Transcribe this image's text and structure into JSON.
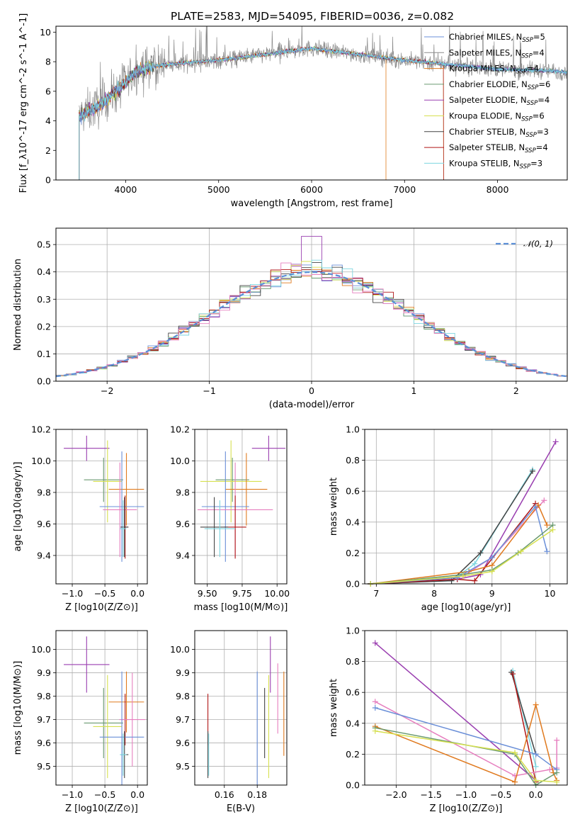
{
  "figure": {
    "title": "PLATE=2583, MJD=54095, FIBERID=0036, z=0.082"
  },
  "colors": {
    "chabrier_miles": "#6a8fd8",
    "salpeter_miles": "#8a8a8a",
    "kroupa_miles": "#e07a1f",
    "chabrier_elodie": "#6a9a70",
    "salpeter_elodie": "#9a3fb0",
    "kroupa_elodie": "#d6e050",
    "chabrier_stelib": "#444444",
    "salpeter_stelib": "#b01818",
    "kroupa_stelib": "#7dd6e0",
    "pink": "#e67fbf",
    "normal": "#5b8ed6"
  },
  "chart_data": [
    {
      "id": "spectrum",
      "type": "line",
      "title": "PLATE=2583, MJD=54095, FIBERID=0036, z=0.082",
      "xlabel": "wavelength [Angstrom, rest frame]",
      "ylabel": "Flux [f_λ10^-17 erg cm^-2 s^-1 A^-1]",
      "xlim": [
        3250,
        8750
      ],
      "ylim": [
        0,
        10.4
      ],
      "xticks": [
        4000,
        5000,
        6000,
        7000,
        8000
      ],
      "yticks": [
        0,
        2,
        4,
        6,
        8,
        10
      ],
      "grid": false,
      "legend_position": "right",
      "continuum": {
        "x": [
          3500,
          3700,
          3900,
          4000,
          4100,
          4300,
          4600,
          5000,
          5500,
          6000,
          6500,
          7000,
          7500,
          8000,
          8500,
          8750
        ],
        "y": [
          4.3,
          5.0,
          6.0,
          6.6,
          7.3,
          7.7,
          7.9,
          8.1,
          8.5,
          8.9,
          8.5,
          8.1,
          7.8,
          7.5,
          7.4,
          7.3
        ]
      },
      "legend": [
        {
          "label": "Chabrier MILES, N_SSP=5",
          "color_key": "chabrier_miles"
        },
        {
          "label": "Salpeter MILES, N_SSP=4",
          "color_key": "salpeter_miles"
        },
        {
          "label": "Kroupa MILES, N_SSP=4",
          "color_key": "kroupa_miles"
        },
        {
          "label": "Chabrier ELODIE, N_SSP=6",
          "color_key": "chabrier_elodie"
        },
        {
          "label": "Salpeter ELODIE, N_SSP=4",
          "color_key": "salpeter_elodie"
        },
        {
          "label": "Kroupa ELODIE, N_SSP=6",
          "color_key": "kroupa_elodie"
        },
        {
          "label": "Chabrier STELIB, N_SSP=3",
          "color_key": "chabrier_stelib"
        },
        {
          "label": "Salpeter STELIB, N_SSP=4",
          "color_key": "salpeter_stelib"
        },
        {
          "label": "Kroupa STELIB, N_SSP=3",
          "color_key": "kroupa_stelib"
        }
      ]
    },
    {
      "id": "residuals",
      "type": "line",
      "xlabel": "(data-model)/error",
      "ylabel": "Normed distribution",
      "xlim": [
        -2.5,
        2.5
      ],
      "ylim": [
        0,
        0.56
      ],
      "xticks": [
        -2,
        -1,
        0,
        1,
        2
      ],
      "yticks": [
        0.0,
        0.1,
        0.2,
        0.3,
        0.4,
        0.5
      ],
      "grid": true,
      "legend_position": "top-right",
      "legend": [
        {
          "label": "N(0,1)"
        }
      ],
      "histogram_bin_width": 0.1,
      "peak_bar": {
        "x": 0.0,
        "y": 0.53
      }
    },
    {
      "id": "age_vs_Z",
      "type": "scatter",
      "xlabel": "Z [log10(Z/Z⊙)]",
      "ylabel": "age [log10(age/yr)]",
      "xlim": [
        -1.25,
        0.15
      ],
      "ylim": [
        9.22,
        10.2
      ],
      "xticks": [
        -1.0,
        -0.5,
        0.0
      ],
      "yticks": [
        9.4,
        9.6,
        9.8,
        10.0,
        10.2
      ],
      "grid": true,
      "points": [
        {
          "color_key": "salpeter_elodie",
          "x": -0.78,
          "xerr": 0.35,
          "y": 10.08,
          "yerr": 0.08
        },
        {
          "color_key": "chabrier_elodie",
          "x": -0.52,
          "xerr": 0.3,
          "y": 9.88,
          "yerr": 0.14
        },
        {
          "color_key": "kroupa_elodie",
          "x": -0.46,
          "xerr": 0.22,
          "y": 9.87,
          "yerr": 0.26
        },
        {
          "color_key": "kroupa_miles",
          "x": -0.17,
          "xerr": 0.27,
          "y": 9.82,
          "yerr": 0.23
        },
        {
          "color_key": "chabrier_miles",
          "x": -0.24,
          "xerr": 0.34,
          "y": 9.71,
          "yerr": 0.35
        },
        {
          "color_key": "pink",
          "x": -0.27,
          "xerr": 0.26,
          "y": 9.69,
          "yerr": 0.3
        },
        {
          "color_key": "salpeter_stelib",
          "x": -0.19,
          "xerr": 0.05,
          "y": 9.58,
          "yerr": 0.2
        },
        {
          "color_key": "chabrier_stelib",
          "x": -0.2,
          "xerr": 0.06,
          "y": 9.58,
          "yerr": 0.19
        },
        {
          "color_key": "kroupa_stelib",
          "x": -0.22,
          "xerr": 0.05,
          "y": 9.57,
          "yerr": 0.18
        }
      ]
    },
    {
      "id": "age_vs_mass",
      "type": "scatter",
      "xlabel": "mass [log10(M/M⊙)]",
      "ylabel": "",
      "xlim": [
        9.41,
        10.07
      ],
      "ylim": [
        9.22,
        10.2
      ],
      "xticks": [
        9.5,
        9.75,
        10.0
      ],
      "yticks": [
        9.4,
        9.6,
        9.8,
        10.0,
        10.2
      ],
      "grid": true,
      "points": [
        {
          "color_key": "salpeter_elodie",
          "x": 9.94,
          "xerr": 0.12,
          "y": 10.08,
          "yerr": 0.08
        },
        {
          "color_key": "chabrier_elodie",
          "x": 9.68,
          "xerr": 0.12,
          "y": 9.88,
          "yerr": 0.14
        },
        {
          "color_key": "kroupa_elodie",
          "x": 9.67,
          "xerr": 0.22,
          "y": 9.87,
          "yerr": 0.26
        },
        {
          "color_key": "kroupa_miles",
          "x": 9.78,
          "xerr": 0.15,
          "y": 9.82,
          "yerr": 0.23
        },
        {
          "color_key": "chabrier_miles",
          "x": 9.63,
          "xerr": 0.17,
          "y": 9.71,
          "yerr": 0.35
        },
        {
          "color_key": "pink",
          "x": 9.7,
          "xerr": 0.27,
          "y": 9.69,
          "yerr": 0.3
        },
        {
          "color_key": "salpeter_stelib",
          "x": 9.7,
          "xerr": 0.08,
          "y": 9.58,
          "yerr": 0.2
        },
        {
          "color_key": "chabrier_stelib",
          "x": 9.55,
          "xerr": 0.1,
          "y": 9.58,
          "yerr": 0.19
        },
        {
          "color_key": "kroupa_stelib",
          "x": 9.59,
          "xerr": 0.11,
          "y": 9.57,
          "yerr": 0.18
        }
      ]
    },
    {
      "id": "mass_weight_vs_age",
      "type": "line",
      "xlabel": "age [log10(age/yr)]",
      "ylabel": "mass weight",
      "xlim": [
        6.8,
        10.3
      ],
      "ylim": [
        0,
        1.0
      ],
      "xticks": [
        7,
        8,
        9,
        10
      ],
      "yticks": [
        0.0,
        0.2,
        0.4,
        0.6,
        0.8,
        1.0
      ],
      "grid": true,
      "series": [
        {
          "color_key": "kroupa_stelib",
          "x": [
            6.9,
            8.3,
            8.7,
            9.7
          ],
          "y": [
            0.0,
            0.02,
            0.13,
            0.74
          ]
        },
        {
          "color_key": "chabrier_stelib",
          "x": [
            6.9,
            8.3,
            8.8,
            9.7
          ],
          "y": [
            0.0,
            0.02,
            0.2,
            0.73
          ]
        },
        {
          "color_key": "salpeter_elodie",
          "x": [
            6.9,
            8.4,
            8.8,
            10.1
          ],
          "y": [
            0.0,
            0.03,
            0.06,
            0.92
          ]
        },
        {
          "color_key": "salpeter_stelib",
          "x": [
            6.9,
            8.4,
            8.7,
            9.75
          ],
          "y": [
            0.0,
            0.03,
            0.02,
            0.52
          ]
        },
        {
          "color_key": "pink",
          "x": [
            6.9,
            8.5,
            9.0,
            9.9
          ],
          "y": [
            0.0,
            0.05,
            0.17,
            0.54
          ]
        },
        {
          "color_key": "kroupa_miles",
          "x": [
            6.9,
            8.6,
            9.0,
            9.8,
            9.95
          ],
          "y": [
            0.0,
            0.08,
            0.12,
            0.51,
            0.38
          ]
        },
        {
          "color_key": "chabrier_miles",
          "x": [
            6.9,
            8.4,
            9.0,
            9.75,
            9.95
          ],
          "y": [
            0.0,
            0.04,
            0.17,
            0.5,
            0.21
          ]
        },
        {
          "color_key": "chabrier_elodie",
          "x": [
            6.9,
            8.5,
            9.0,
            9.45,
            10.05
          ],
          "y": [
            0.0,
            0.06,
            0.09,
            0.2,
            0.38
          ]
        },
        {
          "color_key": "kroupa_elodie",
          "x": [
            6.9,
            8.5,
            9.0,
            9.5,
            10.05
          ],
          "y": [
            0.0,
            0.05,
            0.08,
            0.21,
            0.35
          ]
        }
      ]
    },
    {
      "id": "mass_vs_Z",
      "type": "scatter",
      "xlabel": "Z [log10(Z/Z⊙)]",
      "ylabel": "mass [log10(M/M⊙)]",
      "xlim": [
        -1.25,
        0.15
      ],
      "ylim": [
        9.42,
        10.08
      ],
      "xticks": [
        -1.0,
        -0.5,
        0.0
      ],
      "yticks": [
        9.5,
        9.6,
        9.7,
        9.8,
        9.9,
        10.0
      ],
      "grid": true,
      "points": [
        {
          "color_key": "salpeter_elodie",
          "x": -0.78,
          "xerr": 0.35,
          "y": 9.935,
          "yerr": 0.12
        },
        {
          "color_key": "kroupa_miles",
          "x": -0.17,
          "xerr": 0.27,
          "y": 9.775,
          "yerr": 0.13
        },
        {
          "color_key": "chabrier_elodie",
          "x": -0.52,
          "xerr": 0.3,
          "y": 9.685,
          "yerr": 0.15
        },
        {
          "color_key": "kroupa_elodie",
          "x": -0.46,
          "xerr": 0.22,
          "y": 9.67,
          "yerr": 0.22
        },
        {
          "color_key": "salpeter_stelib",
          "x": -0.19,
          "xerr": 0.05,
          "y": 9.7,
          "yerr": 0.11
        },
        {
          "color_key": "pink",
          "x": -0.08,
          "xerr": 0.2,
          "y": 9.7,
          "yerr": 0.2
        },
        {
          "color_key": "chabrier_miles",
          "x": -0.24,
          "xerr": 0.34,
          "y": 9.625,
          "yerr": 0.28
        },
        {
          "color_key": "chabrier_stelib",
          "x": -0.2,
          "xerr": 0.06,
          "y": 9.55,
          "yerr": 0.1
        },
        {
          "color_key": "kroupa_stelib",
          "x": -0.22,
          "xerr": 0.05,
          "y": 9.55,
          "yerr": 0.09
        }
      ]
    },
    {
      "id": "mass_vs_EBV",
      "type": "scatter",
      "xlabel": "E(B-V)",
      "ylabel": "",
      "xlim": [
        0.142,
        0.198
      ],
      "ylim": [
        9.42,
        10.08
      ],
      "xticks": [
        0.16,
        0.18
      ],
      "yticks": [
        9.5,
        9.6,
        9.7,
        9.8,
        9.9,
        10.0
      ],
      "grid": true,
      "points": [
        {
          "color_key": "salpeter_stelib",
          "x": 0.15,
          "y": 9.7,
          "yerr": 0.11
        },
        {
          "color_key": "chabrier_stelib",
          "x": 0.15,
          "y": 9.55,
          "yerr": 0.1
        },
        {
          "color_key": "kroupa_stelib",
          "x": 0.1505,
          "y": 9.55,
          "yerr": 0.09
        },
        {
          "color_key": "chabrier_miles",
          "x": 0.18,
          "y": 9.625,
          "yerr": 0.28
        },
        {
          "color_key": "chabrier_stelib",
          "x": 0.1845,
          "y": 9.685,
          "yerr": 0.15
        },
        {
          "color_key": "kroupa_elodie",
          "x": 0.187,
          "y": 9.67,
          "yerr": 0.22
        },
        {
          "color_key": "salpeter_elodie",
          "x": 0.188,
          "y": 9.935,
          "yerr": 0.12
        },
        {
          "color_key": "pink",
          "x": 0.1925,
          "y": 9.79,
          "yerr": 0.15
        },
        {
          "color_key": "kroupa_miles",
          "x": 0.1962,
          "y": 9.725,
          "yerr": 0.18
        }
      ]
    },
    {
      "id": "mass_weight_vs_Z",
      "type": "line",
      "xlabel": "Z [log10(Z/Z⊙)]",
      "ylabel": "mass weight",
      "xlim": [
        -2.45,
        0.45
      ],
      "ylim": [
        0,
        1.0
      ],
      "xticks": [
        -2.0,
        -1.5,
        -1.0,
        -0.5,
        0.0
      ],
      "yticks": [
        0.0,
        0.2,
        0.4,
        0.6,
        0.8,
        1.0
      ],
      "grid": true,
      "series": [
        {
          "color_key": "salpeter_elodie",
          "x": [
            -2.3,
            0.0
          ],
          "y": [
            0.92,
            0.03
          ]
        },
        {
          "color_key": "kroupa_stelib",
          "x": [
            -0.33,
            0.0
          ],
          "y": [
            0.74,
            0.12
          ]
        },
        {
          "color_key": "chabrier_stelib",
          "x": [
            -0.35,
            0.0
          ],
          "y": [
            0.73,
            0.2
          ]
        },
        {
          "color_key": "salpeter_stelib",
          "x": [
            -0.33,
            0.0
          ],
          "y": [
            0.72,
            0.02
          ]
        },
        {
          "color_key": "pink",
          "x": [
            -2.3,
            -0.3,
            0.2,
            0.3,
            0.3
          ],
          "y": [
            0.54,
            0.06,
            0.1,
            0.11,
            0.29
          ]
        },
        {
          "color_key": "chabrier_miles",
          "x": [
            -2.3,
            0.0,
            0.3
          ],
          "y": [
            0.5,
            0.2,
            0.1
          ]
        },
        {
          "color_key": "kroupa_miles",
          "x": [
            -2.3,
            -0.3,
            0.0,
            0.25,
            0.3
          ],
          "y": [
            0.38,
            0.02,
            0.52,
            0.08,
            0.03
          ]
        },
        {
          "color_key": "chabrier_elodie",
          "x": [
            -2.3,
            -0.3,
            0.0,
            0.3
          ],
          "y": [
            0.37,
            0.2,
            0.0,
            0.08
          ]
        },
        {
          "color_key": "kroupa_elodie",
          "x": [
            -2.3,
            -0.3,
            0.0,
            0.3
          ],
          "y": [
            0.35,
            0.21,
            0.03,
            0.02
          ]
        }
      ]
    }
  ]
}
